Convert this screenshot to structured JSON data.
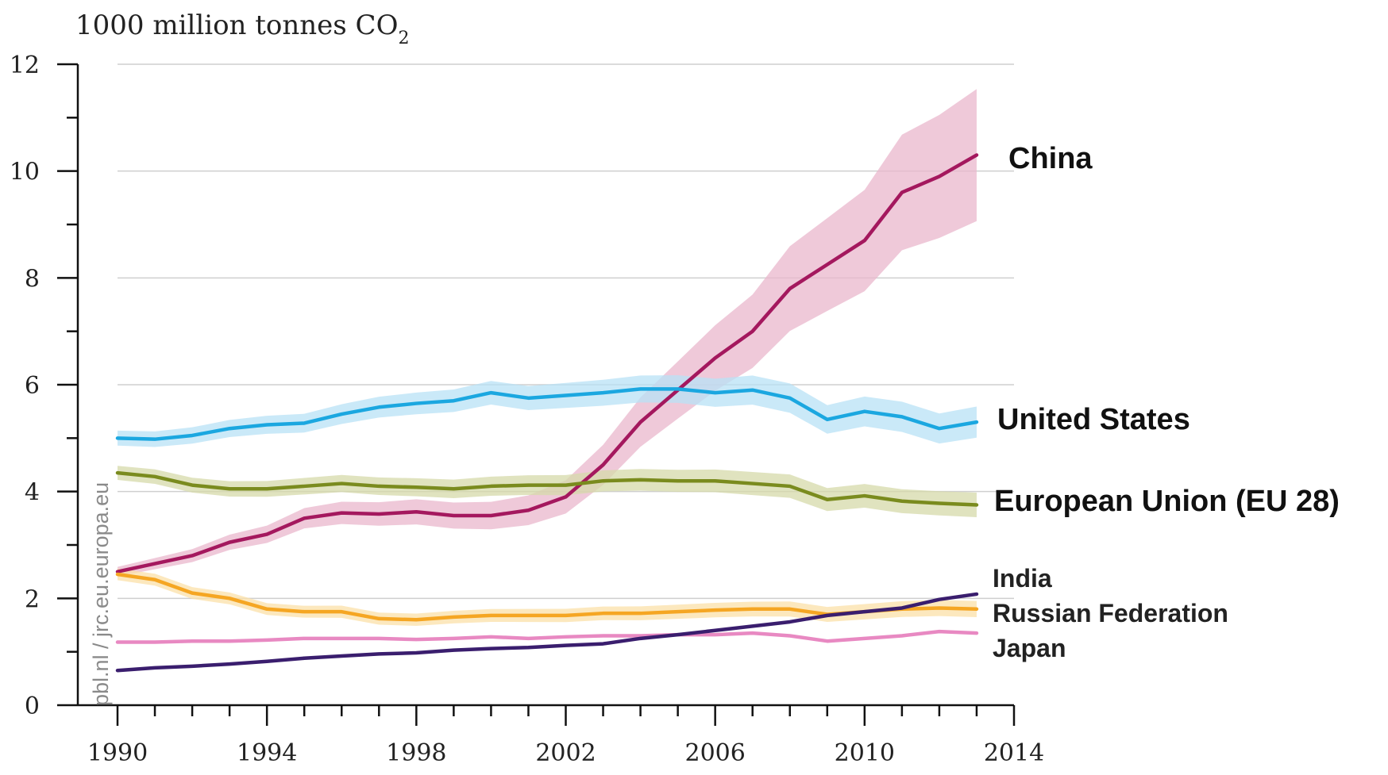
{
  "chart_data": {
    "type": "line",
    "unit_label": "1000 million tonnes CO",
    "unit_subscript": "2",
    "source": "pbl.nl / jrc.eu.europa.eu",
    "ylim": [
      0,
      12
    ],
    "xlim": [
      1990,
      2014
    ],
    "y_ticks": [
      "0",
      "2",
      "4",
      "6",
      "8",
      "10",
      "12"
    ],
    "x_ticks": [
      "1990",
      "1994",
      "1998",
      "2002",
      "2006",
      "2010",
      "2014"
    ],
    "grid": "horizontal",
    "x": [
      1990,
      1991,
      1992,
      1993,
      1994,
      1995,
      1996,
      1997,
      1998,
      1999,
      2000,
      2001,
      2002,
      2003,
      2004,
      2005,
      2006,
      2007,
      2008,
      2009,
      2010,
      2011,
      2012,
      2013
    ],
    "series": [
      {
        "name": "China",
        "color": "#a4185e",
        "band_color": "#e9b7cc",
        "band": 0.12,
        "values": [
          2.5,
          2.65,
          2.8,
          3.05,
          3.2,
          3.5,
          3.6,
          3.58,
          3.62,
          3.55,
          3.55,
          3.65,
          3.9,
          4.5,
          5.3,
          5.9,
          6.5,
          7.0,
          7.8,
          8.25,
          8.7,
          9.6,
          9.9,
          10.3
        ]
      },
      {
        "name": "United States",
        "color": "#1ba7e0",
        "band_color": "#b8e2f5",
        "band": 0.04,
        "values": [
          5.0,
          4.98,
          5.05,
          5.18,
          5.25,
          5.28,
          5.45,
          5.58,
          5.65,
          5.7,
          5.85,
          5.75,
          5.8,
          5.85,
          5.92,
          5.92,
          5.85,
          5.9,
          5.75,
          5.35,
          5.5,
          5.4,
          5.18,
          5.3
        ]
      },
      {
        "name": "European Union (EU 28)",
        "color": "#7a8b1e",
        "band_color": "#d5d9a9",
        "band": 0.04,
        "values": [
          4.35,
          4.28,
          4.12,
          4.05,
          4.05,
          4.1,
          4.15,
          4.1,
          4.08,
          4.05,
          4.1,
          4.12,
          4.12,
          4.2,
          4.22,
          4.2,
          4.2,
          4.15,
          4.1,
          3.85,
          3.92,
          3.82,
          3.78,
          3.75
        ]
      },
      {
        "name": "Russian Federation",
        "color": "#f5a623",
        "band_color": "#fbe0a8",
        "band": 0.04,
        "values": [
          2.45,
          2.35,
          2.1,
          2.0,
          1.8,
          1.75,
          1.75,
          1.62,
          1.6,
          1.65,
          1.68,
          1.68,
          1.68,
          1.72,
          1.72,
          1.75,
          1.78,
          1.8,
          1.8,
          1.7,
          1.75,
          1.8,
          1.82,
          1.8
        ]
      },
      {
        "name": "Japan",
        "color": "#e889c2",
        "band_color": "#f6cfe6",
        "band": 0.0,
        "values": [
          1.18,
          1.18,
          1.2,
          1.2,
          1.22,
          1.25,
          1.25,
          1.25,
          1.23,
          1.25,
          1.28,
          1.25,
          1.28,
          1.3,
          1.3,
          1.32,
          1.32,
          1.35,
          1.3,
          1.2,
          1.25,
          1.3,
          1.38,
          1.35
        ]
      },
      {
        "name": "India",
        "color": "#3a1e6e",
        "band_color": "#c9bedd",
        "band": 0.0,
        "values": [
          0.65,
          0.7,
          0.73,
          0.77,
          0.82,
          0.88,
          0.92,
          0.96,
          0.98,
          1.03,
          1.06,
          1.08,
          1.12,
          1.15,
          1.25,
          1.32,
          1.4,
          1.48,
          1.56,
          1.68,
          1.75,
          1.82,
          1.98,
          2.08
        ]
      }
    ],
    "labels": [
      {
        "text": "China",
        "series": "China"
      },
      {
        "text": "United States",
        "series": "United States"
      },
      {
        "text": "European Union (EU 28)",
        "series": "European Union (EU 28)"
      },
      {
        "text": "India",
        "series": "India"
      },
      {
        "text": "Russian Federation",
        "series": "Russian Federation"
      },
      {
        "text": "Japan",
        "series": "Japan"
      }
    ]
  }
}
